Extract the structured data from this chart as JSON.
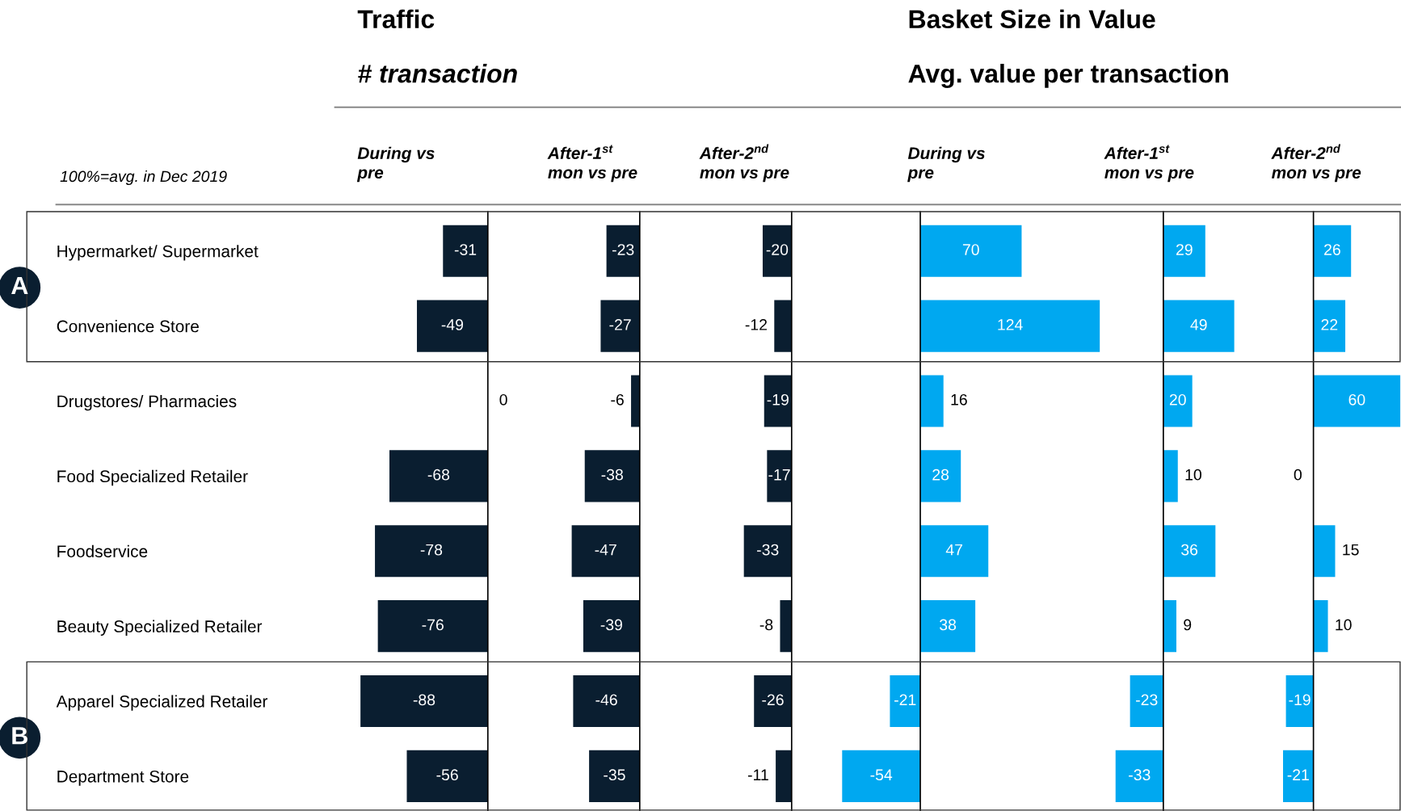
{
  "chart_data": [
    {
      "type": "bar",
      "orientation": "horizontal",
      "title": "Traffic",
      "subtitle": "# transaction",
      "xlabel": "During vs\npre",
      "annotations": [
        "100%=avg. in Dec 2019",
        "A",
        "B"
      ],
      "tick_labels": "y",
      "data_labels": true,
      "color": "#0a1e30",
      "categories": [
        "Hypermarket/ Supermarket",
        "Convenience Store",
        "Drugstores/ Pharmacies",
        "Food Specialized Retailer",
        "Foodservice",
        "Beauty Specialized Retailer",
        "Apparel Specialized Retailer",
        "Department Store"
      ],
      "values": [
        -31,
        -49,
        0,
        -68,
        -78,
        -76,
        -88,
        -56
      ]
    },
    {
      "type": "bar",
      "orientation": "horizontal",
      "xlabel": "After-1$^{st}$\nmon vs pre",
      "tick_labels": false,
      "data_labels": true,
      "color": "#0a1e30",
      "values": [
        -23,
        -27,
        -6,
        -38,
        -47,
        -39,
        -46,
        -35
      ]
    },
    {
      "type": "bar",
      "orientation": "horizontal",
      "xlabel": "After-2$^{nd}$\nmon vs pre",
      "tick_labels": false,
      "data_labels": true,
      "color": "#0a1e30",
      "values": [
        -20,
        -12,
        -19,
        -17,
        -33,
        -8,
        -26,
        -11
      ]
    },
    {
      "type": "bar",
      "orientation": "horizontal",
      "title": "Basket Size in Value",
      "subtitle": "Avg. value per transaction",
      "xlabel": "During vs\npre",
      "tick_labels": false,
      "data_labels": true,
      "color": "#00a8f0",
      "values": [
        70,
        124,
        16,
        28,
        47,
        38,
        -21,
        -54
      ]
    },
    {
      "type": "bar",
      "orientation": "horizontal",
      "xlabel": "After-1$^{st}$\nmon vs pre",
      "tick_labels": false,
      "data_labels": true,
      "color": "#00a8f0",
      "values": [
        29,
        49,
        20,
        10,
        36,
        9,
        -23,
        -33
      ]
    },
    {
      "type": "bar",
      "orientation": "horizontal",
      "xlabel": "After-2$^{nd}$\nmon vs pre",
      "tick_labels": false,
      "data_labels": true,
      "color": "#00a8f0",
      "values": [
        26,
        22,
        60,
        0,
        15,
        10,
        -19,
        -21
      ]
    }
  ]
}
